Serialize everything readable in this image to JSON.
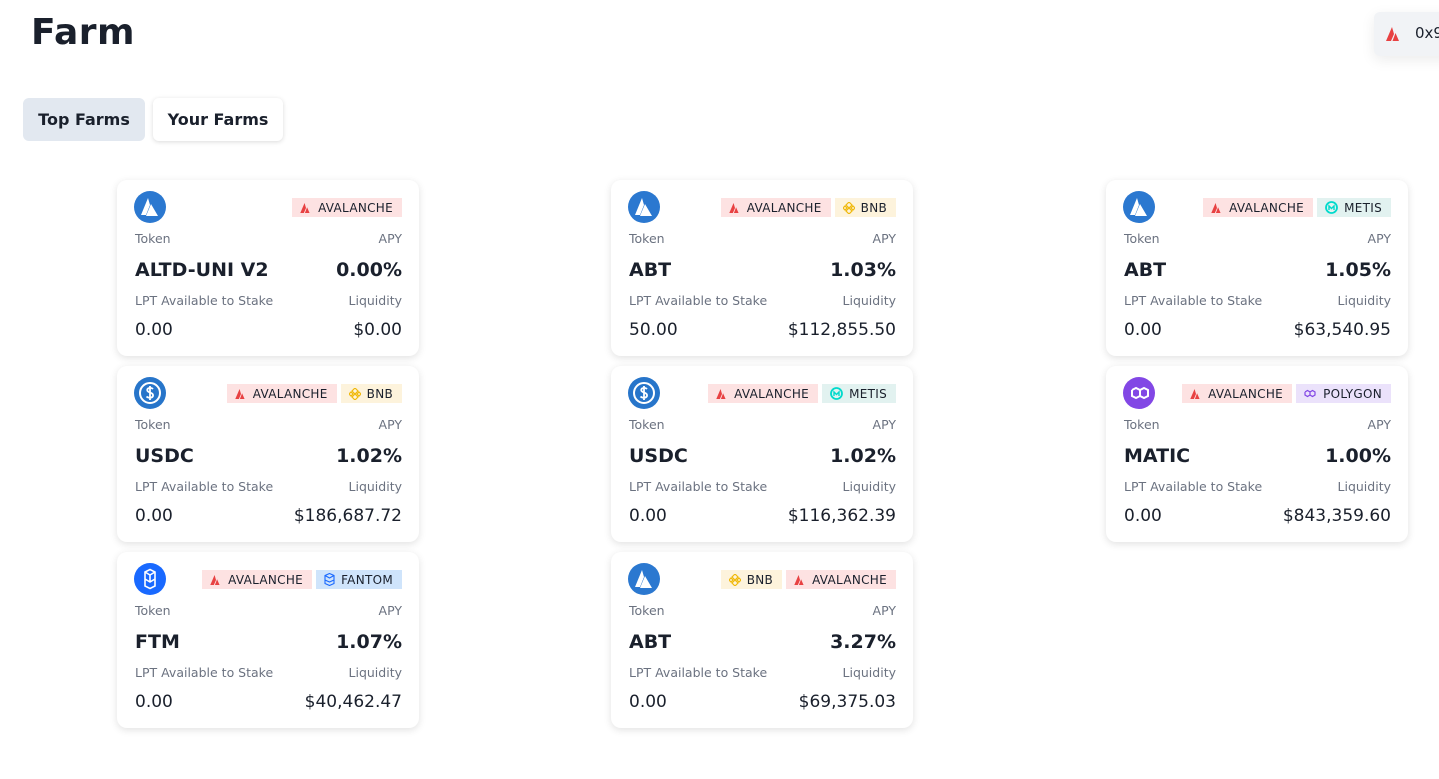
{
  "header": {
    "title": "Farm",
    "account": "0x9"
  },
  "tabs": [
    "Top Farms",
    "Your Farms"
  ],
  "cards": [
    {
      "chains": [
        "AVALANCHE"
      ],
      "token_label": "Token",
      "apy_label": "APY",
      "token": "ALTD-UNI V2",
      "apy": "0.00%",
      "lpt_label": "LPT Available to Stake",
      "liquidity_label": "Liquidity",
      "lpt": "0.00",
      "liquidity": "$0.00"
    },
    {
      "chains": [
        "AVALANCHE",
        "BNB"
      ],
      "token_label": "Token",
      "apy_label": "APY",
      "token": "ABT",
      "apy": "1.03%",
      "lpt_label": "LPT Available to Stake",
      "liquidity_label": "Liquidity",
      "lpt": "50.00",
      "liquidity": "$112,855.50"
    },
    {
      "chains": [
        "AVALANCHE",
        "METIS"
      ],
      "token_label": "Token",
      "apy_label": "APY",
      "token": "ABT",
      "apy": "1.05%",
      "lpt_label": "LPT Available to Stake",
      "liquidity_label": "Liquidity",
      "lpt": "0.00",
      "liquidity": "$63,540.95"
    },
    {
      "chains": [
        "AVALANCHE",
        "BNB"
      ],
      "token_label": "Token",
      "apy_label": "APY",
      "token": "USDC",
      "apy": "1.02%",
      "lpt_label": "LPT Available to Stake",
      "liquidity_label": "Liquidity",
      "lpt": "0.00",
      "liquidity": "$186,687.72"
    },
    {
      "chains": [
        "AVALANCHE",
        "METIS"
      ],
      "token_label": "Token",
      "apy_label": "APY",
      "token": "USDC",
      "apy": "1.02%",
      "lpt_label": "LPT Available to Stake",
      "liquidity_label": "Liquidity",
      "lpt": "0.00",
      "liquidity": "$116,362.39"
    },
    {
      "chains": [
        "AVALANCHE",
        "POLYGON"
      ],
      "token_label": "Token",
      "apy_label": "APY",
      "token": "MATIC",
      "apy": "1.00%",
      "lpt_label": "LPT Available to Stake",
      "liquidity_label": "Liquidity",
      "lpt": "0.00",
      "liquidity": "$843,359.60"
    },
    {
      "chains": [
        "AVALANCHE",
        "FANTOM"
      ],
      "token_label": "Token",
      "apy_label": "APY",
      "token": "FTM",
      "apy": "1.07%",
      "lpt_label": "LPT Available to Stake",
      "liquidity_label": "Liquidity",
      "lpt": "0.00",
      "liquidity": "$40,462.47"
    },
    {
      "chains": [
        "BNB",
        "AVALANCHE"
      ],
      "token_label": "Token",
      "apy_label": "APY",
      "token": "ABT",
      "apy": "3.27%",
      "lpt_label": "LPT Available to Stake",
      "liquidity_label": "Liquidity",
      "lpt": "0.00",
      "liquidity": "$69,375.03"
    }
  ]
}
